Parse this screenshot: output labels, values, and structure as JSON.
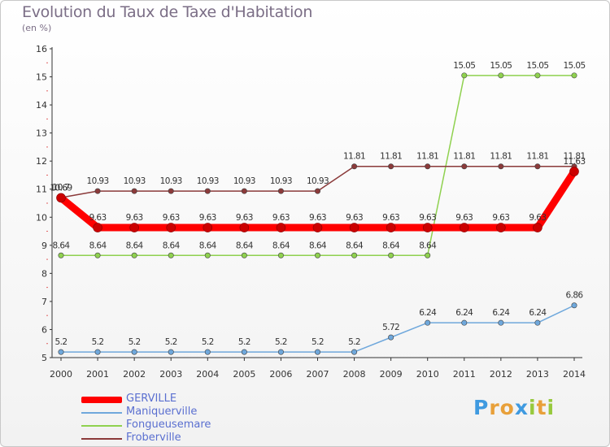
{
  "header": {
    "title": "Evolution du Taux de Taxe d'Habitation",
    "unit": "(en %)"
  },
  "logo": {
    "text": "Proxiti",
    "letters": [
      "P",
      "r",
      "o",
      "x",
      "i",
      "t",
      "i"
    ]
  },
  "chart_data": {
    "type": "line",
    "x": [
      2000,
      2001,
      2002,
      2003,
      2004,
      2005,
      2006,
      2007,
      2008,
      2009,
      2010,
      2011,
      2012,
      2013,
      2014
    ],
    "ylim": [
      5,
      16
    ],
    "yticks": [
      5,
      6,
      7,
      8,
      9,
      10,
      11,
      12,
      13,
      14,
      15,
      16
    ],
    "grid": false,
    "legend_position": "bottom-left",
    "series": [
      {
        "name": "GERVILLE",
        "color": "#ff0000",
        "emphasis": true,
        "values": [
          10.69,
          9.63,
          9.63,
          9.63,
          9.63,
          9.63,
          9.63,
          9.63,
          9.63,
          9.63,
          9.63,
          9.63,
          9.63,
          9.63,
          11.63
        ],
        "labels": [
          "10.69",
          "9.63",
          "9.63",
          "9.63",
          "9.63",
          "9.63",
          "9.63",
          "9.63",
          "9.63",
          "9.63",
          "9.63",
          "9.63",
          "9.63",
          "9.63",
          "11.63"
        ]
      },
      {
        "name": "Maniquerville",
        "color": "#6fa8dc",
        "values": [
          5.2,
          5.2,
          5.2,
          5.2,
          5.2,
          5.2,
          5.2,
          5.2,
          5.2,
          5.72,
          6.24,
          6.24,
          6.24,
          6.24,
          6.86
        ],
        "labels": [
          "5.2",
          "5.2",
          "5.2",
          "5.2",
          "5.2",
          "5.2",
          "5.2",
          "5.2",
          "5.2",
          "5.72",
          "6.24",
          "6.24",
          "6.24",
          "6.24",
          "6.86"
        ]
      },
      {
        "name": "Fongueusemare",
        "color": "#8fd14f",
        "values": [
          8.64,
          8.64,
          8.64,
          8.64,
          8.64,
          8.64,
          8.64,
          8.64,
          8.64,
          8.64,
          8.64,
          15.05,
          15.05,
          15.05,
          15.05
        ],
        "labels": [
          "8.64",
          "8.64",
          "8.64",
          "8.64",
          "8.64",
          "8.64",
          "8.64",
          "8.64",
          "8.64",
          "8.64",
          "8.64",
          "15.05",
          "15.05",
          "15.05",
          "15.05"
        ]
      },
      {
        "name": "Froberville",
        "color": "#8b3a3a",
        "values": [
          10.7,
          10.93,
          10.93,
          10.93,
          10.93,
          10.93,
          10.93,
          10.93,
          11.81,
          11.81,
          11.81,
          11.81,
          11.81,
          11.81,
          11.81
        ],
        "labels": [
          "10.7",
          "10.93",
          "10.93",
          "10.93",
          "10.93",
          "10.93",
          "10.93",
          "10.93",
          "11.81",
          "11.81",
          "11.81",
          "11.81",
          "11.81",
          "11.81",
          "11.81"
        ]
      }
    ]
  }
}
